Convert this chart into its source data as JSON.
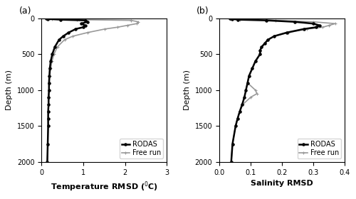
{
  "temp_rodas_depth": [
    0,
    5,
    10,
    20,
    30,
    50,
    75,
    100,
    125,
    150,
    200,
    250,
    300,
    400,
    500,
    600,
    700,
    800,
    900,
    1000,
    1100,
    1200,
    1300,
    1400,
    1500,
    1750,
    2000
  ],
  "temp_rodas_rmsd": [
    0.12,
    0.13,
    0.15,
    0.45,
    1.05,
    1.1,
    0.95,
    1.05,
    1.0,
    0.82,
    0.65,
    0.52,
    0.42,
    0.32,
    0.26,
    0.22,
    0.2,
    0.19,
    0.18,
    0.18,
    0.17,
    0.17,
    0.16,
    0.16,
    0.16,
    0.15,
    0.14
  ],
  "temp_freerun_depth": [
    0,
    5,
    10,
    20,
    30,
    50,
    75,
    100,
    125,
    150,
    200,
    250,
    300,
    400,
    500,
    600,
    700,
    800,
    900,
    1000,
    1100,
    1200,
    1300,
    1400,
    1500,
    1750,
    2000
  ],
  "temp_freerun_rmsd": [
    0.18,
    0.2,
    0.25,
    0.85,
    2.15,
    2.32,
    2.28,
    2.05,
    1.82,
    1.52,
    1.1,
    0.75,
    0.55,
    0.38,
    0.3,
    0.25,
    0.22,
    0.2,
    0.19,
    0.18,
    0.18,
    0.17,
    0.17,
    0.16,
    0.16,
    0.15,
    0.14
  ],
  "sal_rodas_depth": [
    0,
    5,
    10,
    20,
    30,
    50,
    75,
    100,
    125,
    150,
    200,
    250,
    300,
    350,
    400,
    450,
    500,
    600,
    700,
    800,
    900,
    1000,
    1100,
    1200,
    1300,
    1400,
    1500,
    1750,
    2000
  ],
  "sal_rodas_rmsd": [
    0.035,
    0.036,
    0.04,
    0.06,
    0.15,
    0.24,
    0.3,
    0.32,
    0.31,
    0.27,
    0.215,
    0.175,
    0.155,
    0.145,
    0.135,
    0.13,
    0.13,
    0.115,
    0.105,
    0.095,
    0.09,
    0.085,
    0.08,
    0.073,
    0.065,
    0.058,
    0.052,
    0.042,
    0.038
  ],
  "sal_freerun_depth": [
    0,
    5,
    10,
    20,
    30,
    50,
    75,
    100,
    125,
    150,
    200,
    250,
    300,
    350,
    400,
    450,
    500,
    600,
    700,
    800,
    900,
    1000,
    1050,
    1100,
    1200,
    1300,
    1400,
    1500,
    1750,
    2000
  ],
  "sal_freerun_rmsd": [
    0.035,
    0.036,
    0.04,
    0.065,
    0.18,
    0.3,
    0.37,
    0.35,
    0.33,
    0.28,
    0.22,
    0.175,
    0.155,
    0.145,
    0.135,
    0.13,
    0.13,
    0.115,
    0.105,
    0.095,
    0.09,
    0.115,
    0.12,
    0.1,
    0.075,
    0.065,
    0.058,
    0.052,
    0.042,
    0.038
  ],
  "rodas_color": "#000000",
  "freerun_color": "#999999",
  "rodas_label": "RODAS",
  "freerun_label": "Free run",
  "depth_lim": [
    2000,
    0
  ],
  "temp_xlim": [
    0,
    3
  ],
  "temp_xticks": [
    0,
    1,
    2,
    3
  ],
  "sal_xlim": [
    0,
    0.4
  ],
  "sal_xticks": [
    0,
    0.1,
    0.2,
    0.3,
    0.4
  ],
  "yticks": [
    0,
    500,
    1000,
    1500,
    2000
  ],
  "ylabel": "Depth (m)",
  "temp_xlabel": "Temperature RMSD ($^0$C)",
  "sal_xlabel": "Salinity RMSD",
  "panel_a_label": "(a)",
  "panel_b_label": "(b)",
  "bg_color": "#ffffff",
  "linewidth_rodas": 1.8,
  "linewidth_freerun": 1.2,
  "markersize": 3.5,
  "fontsize_label": 8,
  "fontsize_tick": 7,
  "fontsize_panel": 9,
  "fontsize_legend": 7
}
